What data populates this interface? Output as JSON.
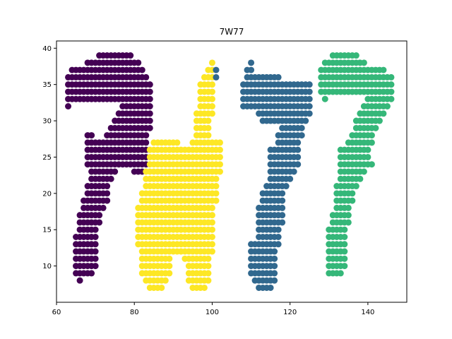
{
  "chart_data": {
    "type": "scatter",
    "title": "7W77",
    "xlabel": "",
    "ylabel": "",
    "xlim": [
      60,
      150
    ],
    "ylim": [
      5,
      41
    ],
    "xticks": [
      60,
      80,
      100,
      120,
      140
    ],
    "yticks": [
      10,
      15,
      20,
      25,
      30,
      35,
      40
    ],
    "grid": false,
    "colors": [
      "#440154",
      "#fde725",
      "#31688e",
      "#35b779"
    ],
    "series": [
      {
        "color": "#440154",
        "rows": [
          {
            "y": 39,
            "x_start": 71,
            "x_end": 79
          },
          {
            "y": 38,
            "x_start": 68,
            "x_end": 81
          },
          {
            "y": 37,
            "x_start": 64,
            "x_end": 82
          },
          {
            "y": 36,
            "x_start": 63,
            "x_end": 83
          },
          {
            "y": 35,
            "x_start": 63,
            "x_end": 84
          },
          {
            "y": 34,
            "x_start": 63,
            "x_end": 84
          },
          {
            "y": 33,
            "x_start": 63,
            "x_end": 84
          },
          {
            "y": 32,
            "x_start": 63,
            "x_end": 63
          },
          {
            "y": 32,
            "x_start": 77,
            "x_end": 84
          },
          {
            "y": 31,
            "x_start": 76,
            "x_end": 84
          },
          {
            "y": 30,
            "x_start": 75,
            "x_end": 84
          },
          {
            "y": 29,
            "x_start": 74,
            "x_end": 84
          },
          {
            "y": 28,
            "x_start": 68,
            "x_end": 69
          },
          {
            "y": 28,
            "x_start": 73,
            "x_end": 83
          },
          {
            "y": 27,
            "x_start": 68,
            "x_end": 83
          },
          {
            "y": 26,
            "x_start": 68,
            "x_end": 83
          },
          {
            "y": 25,
            "x_start": 68,
            "x_end": 83
          },
          {
            "y": 24,
            "x_start": 68,
            "x_end": 83
          },
          {
            "y": 23,
            "x_start": 69,
            "x_end": 75
          },
          {
            "y": 23,
            "x_start": 80,
            "x_end": 82
          },
          {
            "y": 22,
            "x_start": 69,
            "x_end": 74
          },
          {
            "y": 21,
            "x_start": 68,
            "x_end": 73
          },
          {
            "y": 20,
            "x_start": 68,
            "x_end": 73
          },
          {
            "y": 19,
            "x_start": 67,
            "x_end": 73
          },
          {
            "y": 18,
            "x_start": 67,
            "x_end": 72
          },
          {
            "y": 17,
            "x_start": 66,
            "x_end": 71
          },
          {
            "y": 16,
            "x_start": 66,
            "x_end": 71
          },
          {
            "y": 15,
            "x_start": 66,
            "x_end": 70
          },
          {
            "y": 14,
            "x_start": 65,
            "x_end": 70
          },
          {
            "y": 13,
            "x_start": 65,
            "x_end": 70
          },
          {
            "y": 12,
            "x_start": 65,
            "x_end": 70
          },
          {
            "y": 11,
            "x_start": 65,
            "x_end": 70
          },
          {
            "y": 10,
            "x_start": 65,
            "x_end": 70
          },
          {
            "y": 9,
            "x_start": 65,
            "x_end": 69
          },
          {
            "y": 8,
            "x_start": 66,
            "x_end": 66
          }
        ]
      },
      {
        "color": "#fde725",
        "rows": [
          {
            "y": 38,
            "x_start": 100,
            "x_end": 100
          },
          {
            "y": 37,
            "x_start": 99,
            "x_end": 100
          },
          {
            "y": 36,
            "x_start": 98,
            "x_end": 100
          },
          {
            "y": 35,
            "x_start": 97,
            "x_end": 100
          },
          {
            "y": 34,
            "x_start": 97,
            "x_end": 100
          },
          {
            "y": 33,
            "x_start": 97,
            "x_end": 100
          },
          {
            "y": 32,
            "x_start": 97,
            "x_end": 100
          },
          {
            "y": 31,
            "x_start": 96,
            "x_end": 100
          },
          {
            "y": 30,
            "x_start": 96,
            "x_end": 99
          },
          {
            "y": 29,
            "x_start": 96,
            "x_end": 99
          },
          {
            "y": 28,
            "x_start": 96,
            "x_end": 99
          },
          {
            "y": 27,
            "x_start": 85,
            "x_end": 91
          },
          {
            "y": 27,
            "x_start": 95,
            "x_end": 102
          },
          {
            "y": 26,
            "x_start": 84,
            "x_end": 102
          },
          {
            "y": 25,
            "x_start": 84,
            "x_end": 102
          },
          {
            "y": 24,
            "x_start": 84,
            "x_end": 102
          },
          {
            "y": 23,
            "x_start": 83,
            "x_end": 102
          },
          {
            "y": 22,
            "x_start": 83,
            "x_end": 101
          },
          {
            "y": 21,
            "x_start": 83,
            "x_end": 101
          },
          {
            "y": 20,
            "x_start": 82,
            "x_end": 101
          },
          {
            "y": 19,
            "x_start": 82,
            "x_end": 101
          },
          {
            "y": 18,
            "x_start": 81,
            "x_end": 100
          },
          {
            "y": 17,
            "x_start": 81,
            "x_end": 100
          },
          {
            "y": 16,
            "x_start": 81,
            "x_end": 100
          },
          {
            "y": 15,
            "x_start": 81,
            "x_end": 100
          },
          {
            "y": 14,
            "x_start": 81,
            "x_end": 100
          },
          {
            "y": 13,
            "x_start": 81,
            "x_end": 100
          },
          {
            "y": 12,
            "x_start": 82,
            "x_end": 100
          },
          {
            "y": 11,
            "x_start": 82,
            "x_end": 89
          },
          {
            "y": 11,
            "x_start": 93,
            "x_end": 99
          },
          {
            "y": 10,
            "x_start": 82,
            "x_end": 89
          },
          {
            "y": 10,
            "x_start": 94,
            "x_end": 99
          },
          {
            "y": 9,
            "x_start": 82,
            "x_end": 89
          },
          {
            "y": 9,
            "x_start": 94,
            "x_end": 99
          },
          {
            "y": 8,
            "x_start": 83,
            "x_end": 88
          },
          {
            "y": 8,
            "x_start": 94,
            "x_end": 99
          },
          {
            "y": 7,
            "x_start": 84,
            "x_end": 87
          },
          {
            "y": 7,
            "x_start": 95,
            "x_end": 98
          }
        ]
      },
      {
        "color": "#31688e",
        "rows": [
          {
            "y": 38,
            "x_start": 110,
            "x_end": 110
          },
          {
            "y": 37,
            "x_start": 101,
            "x_end": 101
          },
          {
            "y": 37,
            "x_start": 109,
            "x_end": 110
          },
          {
            "y": 36,
            "x_start": 101,
            "x_end": 101
          },
          {
            "y": 36,
            "x_start": 109,
            "x_end": 117
          },
          {
            "y": 35,
            "x_start": 108,
            "x_end": 125
          },
          {
            "y": 34,
            "x_start": 108,
            "x_end": 125
          },
          {
            "y": 33,
            "x_start": 108,
            "x_end": 125
          },
          {
            "y": 32,
            "x_start": 108,
            "x_end": 125
          },
          {
            "y": 31,
            "x_start": 112,
            "x_end": 125
          },
          {
            "y": 30,
            "x_start": 113,
            "x_end": 124
          },
          {
            "y": 29,
            "x_start": 118,
            "x_end": 123
          },
          {
            "y": 28,
            "x_start": 117,
            "x_end": 123
          },
          {
            "y": 27,
            "x_start": 117,
            "x_end": 122
          },
          {
            "y": 26,
            "x_start": 115,
            "x_end": 122
          },
          {
            "y": 25,
            "x_start": 115,
            "x_end": 122
          },
          {
            "y": 24,
            "x_start": 115,
            "x_end": 122
          },
          {
            "y": 23,
            "x_start": 115,
            "x_end": 121
          },
          {
            "y": 22,
            "x_start": 115,
            "x_end": 120
          },
          {
            "y": 21,
            "x_start": 114,
            "x_end": 119
          },
          {
            "y": 20,
            "x_start": 113,
            "x_end": 118
          },
          {
            "y": 19,
            "x_start": 113,
            "x_end": 118
          },
          {
            "y": 18,
            "x_start": 112,
            "x_end": 118
          },
          {
            "y": 17,
            "x_start": 112,
            "x_end": 118
          },
          {
            "y": 16,
            "x_start": 112,
            "x_end": 118
          },
          {
            "y": 15,
            "x_start": 112,
            "x_end": 117
          },
          {
            "y": 14,
            "x_start": 112,
            "x_end": 117
          },
          {
            "y": 13,
            "x_start": 110,
            "x_end": 117
          },
          {
            "y": 12,
            "x_start": 110,
            "x_end": 116
          },
          {
            "y": 11,
            "x_start": 110,
            "x_end": 116
          },
          {
            "y": 10,
            "x_start": 110,
            "x_end": 116
          },
          {
            "y": 9,
            "x_start": 110,
            "x_end": 116
          },
          {
            "y": 8,
            "x_start": 111,
            "x_end": 116
          },
          {
            "y": 7,
            "x_start": 112,
            "x_end": 115
          }
        ]
      },
      {
        "color": "#35b779",
        "rows": [
          {
            "y": 39,
            "x_start": 131,
            "x_end": 137
          },
          {
            "y": 38,
            "x_start": 129,
            "x_end": 139
          },
          {
            "y": 37,
            "x_start": 128,
            "x_end": 144
          },
          {
            "y": 36,
            "x_start": 128,
            "x_end": 146
          },
          {
            "y": 35,
            "x_start": 128,
            "x_end": 146
          },
          {
            "y": 34,
            "x_start": 128,
            "x_end": 146
          },
          {
            "y": 33,
            "x_start": 129,
            "x_end": 129
          },
          {
            "y": 33,
            "x_start": 140,
            "x_end": 146
          },
          {
            "y": 32,
            "x_start": 139,
            "x_end": 145
          },
          {
            "y": 31,
            "x_start": 138,
            "x_end": 144
          },
          {
            "y": 30,
            "x_start": 137,
            "x_end": 143
          },
          {
            "y": 29,
            "x_start": 137,
            "x_end": 142
          },
          {
            "y": 28,
            "x_start": 136,
            "x_end": 141
          },
          {
            "y": 27,
            "x_start": 135,
            "x_end": 141
          },
          {
            "y": 26,
            "x_start": 133,
            "x_end": 140
          },
          {
            "y": 25,
            "x_start": 133,
            "x_end": 140
          },
          {
            "y": 24,
            "x_start": 133,
            "x_end": 141
          },
          {
            "y": 23,
            "x_start": 133,
            "x_end": 139
          },
          {
            "y": 22,
            "x_start": 133,
            "x_end": 138
          },
          {
            "y": 21,
            "x_start": 132,
            "x_end": 137
          },
          {
            "y": 20,
            "x_start": 132,
            "x_end": 136
          },
          {
            "y": 19,
            "x_start": 132,
            "x_end": 136
          },
          {
            "y": 18,
            "x_start": 132,
            "x_end": 135
          },
          {
            "y": 17,
            "x_start": 131,
            "x_end": 135
          },
          {
            "y": 16,
            "x_start": 131,
            "x_end": 135
          },
          {
            "y": 15,
            "x_start": 130,
            "x_end": 134
          },
          {
            "y": 14,
            "x_start": 130,
            "x_end": 134
          },
          {
            "y": 13,
            "x_start": 130,
            "x_end": 134
          },
          {
            "y": 12,
            "x_start": 130,
            "x_end": 134
          },
          {
            "y": 11,
            "x_start": 130,
            "x_end": 134
          },
          {
            "y": 10,
            "x_start": 130,
            "x_end": 134
          },
          {
            "y": 9,
            "x_start": 130,
            "x_end": 133
          }
        ]
      }
    ]
  }
}
